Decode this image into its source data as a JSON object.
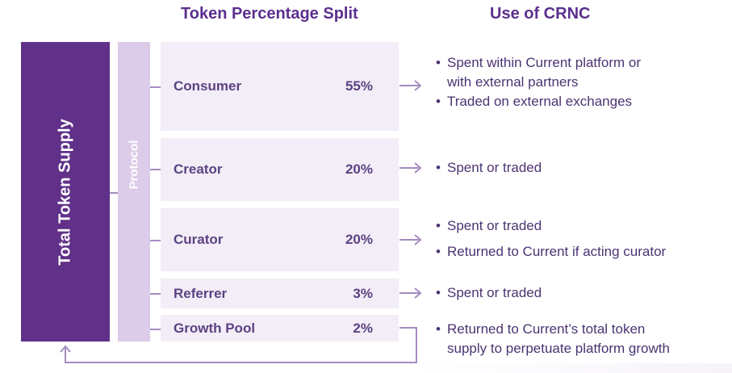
{
  "headers": {
    "split": "Token Percentage Split",
    "use": "Use of CRNC"
  },
  "supply_label": "Total Token Supply",
  "protocol_label": "Protocol",
  "rows": [
    {
      "name": "Consumer",
      "percent": "55%",
      "uses": [
        "Spent within Current platform or with external partners",
        "Traded on external exchanges"
      ]
    },
    {
      "name": "Creator",
      "percent": "20%",
      "uses": [
        "Spent or traded"
      ]
    },
    {
      "name": "Curator",
      "percent": "20%",
      "uses": [
        "Spent or traded",
        "Returned to Current if acting curator"
      ]
    },
    {
      "name": "Referrer",
      "percent": "3%",
      "uses": [
        "Spent or traded"
      ]
    },
    {
      "name": "Growth Pool",
      "percent": "2%",
      "uses": [
        "Returned to Current’s total token supply to perpetuate platform growth"
      ]
    }
  ],
  "use_lines": {
    "consumer_1a": "Spent within Current platform or",
    "consumer_1b": "with external partners",
    "growth_1a": "Returned to Current’s total token",
    "growth_1b": "supply to perpetuate platform growth"
  },
  "colors": {
    "supply": "#613189",
    "protocol": "#dccbe9",
    "row_bg": "#f2edf6",
    "connector": "#a48dc0",
    "text": "#5b2f8e"
  }
}
